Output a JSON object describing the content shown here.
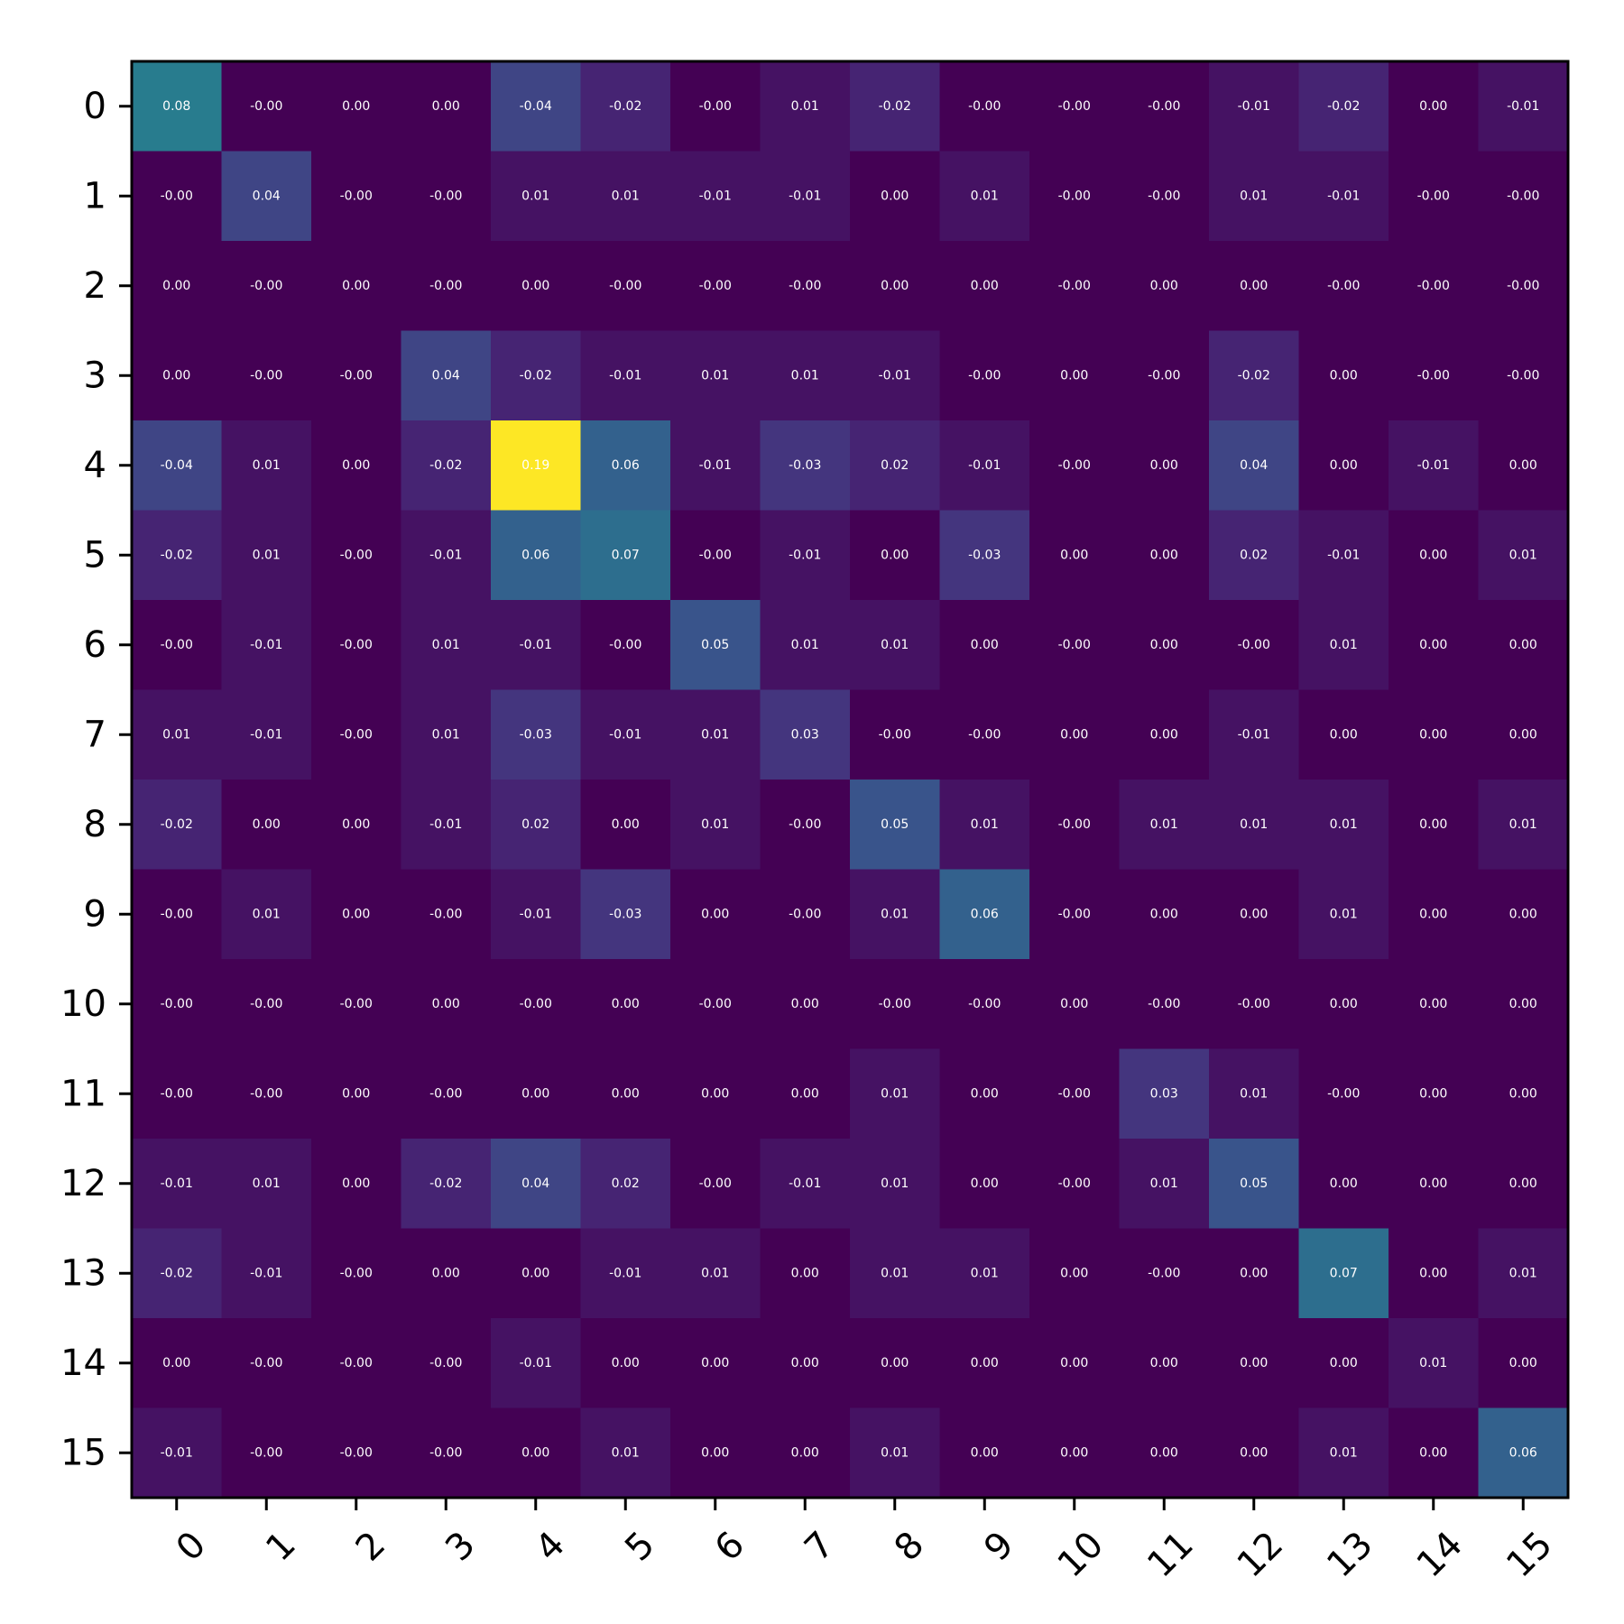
{
  "chart_data": {
    "type": "heatmap",
    "colormap": "viridis",
    "value_range": [
      -0.04,
      0.19
    ],
    "annotation_color": "#ffffff",
    "x_categories": [
      "0",
      "1",
      "2",
      "3",
      "4",
      "5",
      "6",
      "7",
      "8",
      "9",
      "10",
      "11",
      "12",
      "13",
      "14",
      "15"
    ],
    "y_categories": [
      "0",
      "1",
      "2",
      "3",
      "4",
      "5",
      "6",
      "7",
      "8",
      "9",
      "10",
      "11",
      "12",
      "13",
      "14",
      "15"
    ],
    "x_tick_rotation": "45 degrees",
    "values": [
      [
        0.08,
        -0.0,
        0.0,
        0.0,
        -0.04,
        -0.02,
        -0.0,
        0.01,
        -0.02,
        -0.0,
        -0.0,
        -0.0,
        -0.01,
        -0.02,
        0.0,
        -0.01
      ],
      [
        -0.0,
        0.04,
        -0.0,
        -0.0,
        0.01,
        0.01,
        -0.01,
        -0.01,
        0.0,
        0.01,
        -0.0,
        -0.0,
        0.01,
        -0.01,
        -0.0,
        -0.0
      ],
      [
        0.0,
        -0.0,
        0.0,
        -0.0,
        0.0,
        -0.0,
        -0.0,
        -0.0,
        0.0,
        0.0,
        -0.0,
        0.0,
        0.0,
        -0.0,
        -0.0,
        -0.0
      ],
      [
        0.0,
        -0.0,
        -0.0,
        0.04,
        -0.02,
        -0.01,
        0.01,
        0.01,
        -0.01,
        -0.0,
        0.0,
        -0.0,
        -0.02,
        0.0,
        -0.0,
        -0.0
      ],
      [
        -0.04,
        0.01,
        0.0,
        -0.02,
        0.19,
        0.06,
        -0.01,
        -0.03,
        0.02,
        -0.01,
        -0.0,
        0.0,
        0.04,
        0.0,
        -0.01,
        0.0
      ],
      [
        -0.02,
        0.01,
        -0.0,
        -0.01,
        0.06,
        0.07,
        -0.0,
        -0.01,
        0.0,
        -0.03,
        0.0,
        0.0,
        0.02,
        -0.01,
        0.0,
        0.01
      ],
      [
        -0.0,
        -0.01,
        -0.0,
        0.01,
        -0.01,
        -0.0,
        0.05,
        0.01,
        0.01,
        0.0,
        -0.0,
        0.0,
        -0.0,
        0.01,
        0.0,
        0.0
      ],
      [
        0.01,
        -0.01,
        -0.0,
        0.01,
        -0.03,
        -0.01,
        0.01,
        0.03,
        -0.0,
        -0.0,
        0.0,
        0.0,
        -0.01,
        0.0,
        0.0,
        0.0
      ],
      [
        -0.02,
        0.0,
        0.0,
        -0.01,
        0.02,
        0.0,
        0.01,
        -0.0,
        0.05,
        0.01,
        -0.0,
        0.01,
        0.01,
        0.01,
        0.0,
        0.01
      ],
      [
        -0.0,
        0.01,
        0.0,
        -0.0,
        -0.01,
        -0.03,
        0.0,
        -0.0,
        0.01,
        0.06,
        -0.0,
        0.0,
        0.0,
        0.01,
        0.0,
        0.0
      ],
      [
        -0.0,
        -0.0,
        -0.0,
        0.0,
        -0.0,
        0.0,
        -0.0,
        0.0,
        -0.0,
        -0.0,
        0.0,
        -0.0,
        -0.0,
        0.0,
        0.0,
        0.0
      ],
      [
        -0.0,
        -0.0,
        0.0,
        -0.0,
        0.0,
        0.0,
        0.0,
        0.0,
        0.01,
        0.0,
        -0.0,
        0.03,
        0.01,
        -0.0,
        0.0,
        0.0
      ],
      [
        -0.01,
        0.01,
        0.0,
        -0.02,
        0.04,
        0.02,
        -0.0,
        -0.01,
        0.01,
        0.0,
        -0.0,
        0.01,
        0.05,
        0.0,
        0.0,
        0.0
      ],
      [
        -0.02,
        -0.01,
        -0.0,
        0.0,
        0.0,
        -0.01,
        0.01,
        0.0,
        0.01,
        0.01,
        0.0,
        -0.0,
        0.0,
        0.07,
        0.0,
        0.01
      ],
      [
        0.0,
        -0.0,
        -0.0,
        -0.0,
        -0.01,
        0.0,
        0.0,
        0.0,
        0.0,
        0.0,
        0.0,
        0.0,
        0.0,
        0.0,
        0.01,
        0.0
      ],
      [
        -0.01,
        -0.0,
        -0.0,
        -0.0,
        0.0,
        0.01,
        0.0,
        0.0,
        0.01,
        0.0,
        0.0,
        0.0,
        0.0,
        0.01,
        0.0,
        0.06
      ]
    ],
    "labels": [
      [
        "0.08",
        "-0.00",
        "0.00",
        "0.00",
        "-0.04",
        "-0.02",
        "-0.00",
        "0.01",
        "-0.02",
        "-0.00",
        "-0.00",
        "-0.00",
        "-0.01",
        "-0.02",
        "0.00",
        "-0.01"
      ],
      [
        "-0.00",
        "0.04",
        "-0.00",
        "-0.00",
        "0.01",
        "0.01",
        "-0.01",
        "-0.01",
        "0.00",
        "0.01",
        "-0.00",
        "-0.00",
        "0.01",
        "-0.01",
        "-0.00",
        "-0.00"
      ],
      [
        "0.00",
        "-0.00",
        "0.00",
        "-0.00",
        "0.00",
        "-0.00",
        "-0.00",
        "-0.00",
        "0.00",
        "0.00",
        "-0.00",
        "0.00",
        "0.00",
        "-0.00",
        "-0.00",
        "-0.00"
      ],
      [
        "0.00",
        "-0.00",
        "-0.00",
        "0.04",
        "-0.02",
        "-0.01",
        "0.01",
        "0.01",
        "-0.01",
        "-0.00",
        "0.00",
        "-0.00",
        "-0.02",
        "0.00",
        "-0.00",
        "-0.00"
      ],
      [
        "-0.04",
        "0.01",
        "0.00",
        "-0.02",
        "0.19",
        "0.06",
        "-0.01",
        "-0.03",
        "0.02",
        "-0.01",
        "-0.00",
        "0.00",
        "0.04",
        "0.00",
        "-0.01",
        "0.00"
      ],
      [
        "-0.02",
        "0.01",
        "-0.00",
        "-0.01",
        "0.06",
        "0.07",
        "-0.00",
        "-0.01",
        "0.00",
        "-0.03",
        "0.00",
        "0.00",
        "0.02",
        "-0.01",
        "0.00",
        "0.01"
      ],
      [
        "-0.00",
        "-0.01",
        "-0.00",
        "0.01",
        "-0.01",
        "-0.00",
        "0.05",
        "0.01",
        "0.01",
        "0.00",
        "-0.00",
        "0.00",
        "-0.00",
        "0.01",
        "0.00",
        "0.00"
      ],
      [
        "0.01",
        "-0.01",
        "-0.00",
        "0.01",
        "-0.03",
        "-0.01",
        "0.01",
        "0.03",
        "-0.00",
        "-0.00",
        "0.00",
        "0.00",
        "-0.01",
        "0.00",
        "0.00",
        "0.00"
      ],
      [
        "-0.02",
        "0.00",
        "0.00",
        "-0.01",
        "0.02",
        "0.00",
        "0.01",
        "-0.00",
        "0.05",
        "0.01",
        "-0.00",
        "0.01",
        "0.01",
        "0.01",
        "0.00",
        "0.01"
      ],
      [
        "-0.00",
        "0.01",
        "0.00",
        "-0.00",
        "-0.01",
        "-0.03",
        "0.00",
        "-0.00",
        "0.01",
        "0.06",
        "-0.00",
        "0.00",
        "0.00",
        "0.01",
        "0.00",
        "0.00"
      ],
      [
        "-0.00",
        "-0.00",
        "-0.00",
        "0.00",
        "-0.00",
        "0.00",
        "-0.00",
        "0.00",
        "-0.00",
        "-0.00",
        "0.00",
        "-0.00",
        "-0.00",
        "0.00",
        "0.00",
        "0.00"
      ],
      [
        "-0.00",
        "-0.00",
        "0.00",
        "-0.00",
        "0.00",
        "0.00",
        "0.00",
        "0.00",
        "0.01",
        "0.00",
        "-0.00",
        "0.03",
        "0.01",
        "-0.00",
        "0.00",
        "0.00"
      ],
      [
        "-0.01",
        "0.01",
        "0.00",
        "-0.02",
        "0.04",
        "0.02",
        "-0.00",
        "-0.01",
        "0.01",
        "0.00",
        "-0.00",
        "0.01",
        "0.05",
        "0.00",
        "0.00",
        "0.00"
      ],
      [
        "-0.02",
        "-0.01",
        "-0.00",
        "0.00",
        "0.00",
        "-0.01",
        "0.01",
        "0.00",
        "0.01",
        "0.01",
        "0.00",
        "-0.00",
        "0.00",
        "0.07",
        "0.00",
        "0.01"
      ],
      [
        "0.00",
        "-0.00",
        "-0.00",
        "-0.00",
        "-0.01",
        "0.00",
        "0.00",
        "0.00",
        "0.00",
        "0.00",
        "0.00",
        "0.00",
        "0.00",
        "0.00",
        "0.01",
        "0.00"
      ],
      [
        "-0.01",
        "-0.00",
        "-0.00",
        "-0.00",
        "0.00",
        "0.01",
        "0.00",
        "0.00",
        "0.01",
        "0.00",
        "0.00",
        "0.00",
        "0.00",
        "0.01",
        "0.00",
        "0.06"
      ]
    ]
  }
}
